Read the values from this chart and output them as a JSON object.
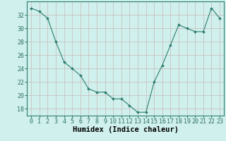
{
  "x": [
    0,
    1,
    2,
    3,
    4,
    5,
    6,
    7,
    8,
    9,
    10,
    11,
    12,
    13,
    14,
    15,
    16,
    17,
    18,
    19,
    20,
    21,
    22,
    23
  ],
  "y": [
    33.0,
    32.5,
    31.5,
    28.0,
    25.0,
    24.0,
    23.0,
    21.0,
    20.5,
    20.5,
    19.5,
    19.5,
    18.5,
    17.5,
    17.5,
    22.0,
    24.5,
    27.5,
    30.5,
    30.0,
    29.5,
    29.5,
    33.0,
    31.5
  ],
  "xlabel": "Humidex (Indice chaleur)",
  "ylim": [
    17,
    34
  ],
  "yticks": [
    18,
    20,
    22,
    24,
    26,
    28,
    30,
    32
  ],
  "xticks": [
    0,
    1,
    2,
    3,
    4,
    5,
    6,
    7,
    8,
    9,
    10,
    11,
    12,
    13,
    14,
    15,
    16,
    17,
    18,
    19,
    20,
    21,
    22,
    23
  ],
  "line_color": "#2e7d6e",
  "marker_color": "#2e7d6e",
  "bg_color": "#cff0ec",
  "grid_color": "#c8b8b8",
  "xlabel_fontsize": 7.5,
  "tick_fontsize": 6.0,
  "spine_color": "#2e7d6e"
}
